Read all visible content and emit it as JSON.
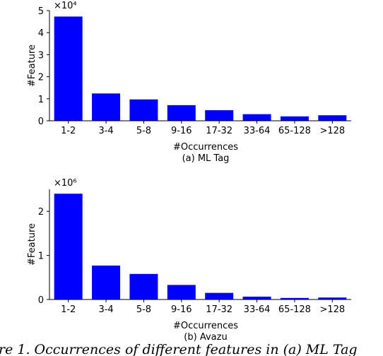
{
  "colors": {
    "bar": "#0000ff",
    "axis": "#000000"
  },
  "chart_data": [
    {
      "type": "bar",
      "categories": [
        "1-2",
        "3-4",
        "5-8",
        "9-16",
        "17-32",
        "33-64",
        "65-128",
        ">128"
      ],
      "values": [
        47300,
        12400,
        9700,
        7100,
        4800,
        3000,
        2000,
        2500
      ],
      "xlabel": "#Occurrences",
      "ylabel": "#Feature",
      "ylim": [
        0,
        50000
      ],
      "yticks": [
        "0",
        "1",
        "2",
        "3",
        "4",
        "5"
      ],
      "scale_label": "×10⁴",
      "subcaption": "(a) ML Tag",
      "grid": false,
      "legend": "none"
    },
    {
      "type": "bar",
      "categories": [
        "1-2",
        "3-4",
        "5-8",
        "9-16",
        "17-32",
        "33-64",
        "65-128",
        ">128"
      ],
      "values": [
        2400000,
        770000,
        580000,
        330000,
        150000,
        65000,
        35000,
        45000
      ],
      "xlabel": "#Occurrences",
      "ylabel": "#Feature",
      "ylim": [
        0,
        2500000
      ],
      "yticks": [
        "0",
        "1",
        "2"
      ],
      "scale_label": "×10⁶",
      "subcaption": "(b) Avazu",
      "grid": false,
      "legend": "none"
    }
  ],
  "figure_caption": "re 1. Occurrences of different features in (a) ML Tag"
}
